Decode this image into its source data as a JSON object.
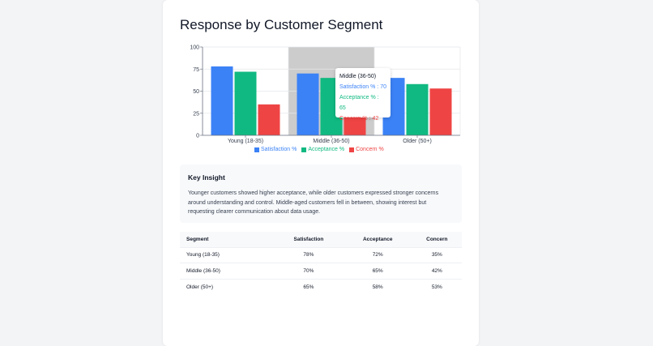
{
  "page": {
    "title": "Response by Customer Segment"
  },
  "chart_data": {
    "type": "bar",
    "categories": [
      "Young (18-35)",
      "Middle (36-50)",
      "Older (50+)"
    ],
    "series": [
      {
        "name": "Satisfaction %",
        "values": [
          78,
          70,
          65
        ],
        "color": "#3b82f6"
      },
      {
        "name": "Acceptance %",
        "values": [
          72,
          65,
          58
        ],
        "color": "#10b981"
      },
      {
        "name": "Concern %",
        "values": [
          35,
          42,
          53
        ],
        "color": "#ef4444"
      }
    ],
    "ylim": [
      0,
      100
    ],
    "yticks": [
      "0",
      "25",
      "50",
      "75",
      "100"
    ],
    "highlighted_category": "Middle (36-50)",
    "tooltip": {
      "title": "Middle (36-50)",
      "lines": [
        "Satisfaction % : 70",
        "Acceptance % : 65",
        "Concern % : 42"
      ]
    },
    "legend": "bottom"
  },
  "insight": {
    "title": "Key Insight",
    "text": "Younger customers showed higher acceptance, while older customers expressed stronger concerns around understanding and control. Middle-aged customers fell in between, showing interest but requesting clearer communication about data usage."
  },
  "table": {
    "headers": [
      "Segment",
      "Satisfaction",
      "Acceptance",
      "Concern"
    ],
    "rows": [
      [
        "Young (18-35)",
        "78%",
        "72%",
        "35%"
      ],
      [
        "Middle (36-50)",
        "70%",
        "65%",
        "42%"
      ],
      [
        "Older (50+)",
        "65%",
        "58%",
        "53%"
      ]
    ]
  }
}
